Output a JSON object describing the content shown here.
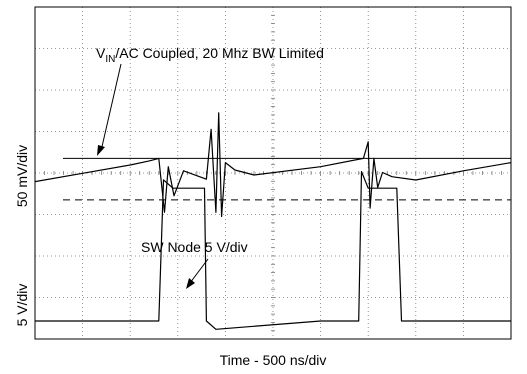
{
  "chart_data": {
    "type": "line",
    "title": "",
    "xlabel": "Time - 500 ns/div",
    "ylabel_upper": "50 mV/div",
    "ylabel_lower": "5 V/div",
    "grid": true,
    "grid_style": "dotted",
    "divisions": {
      "horizontal": 10,
      "vertical": 8
    },
    "x_unit": "ns",
    "x_per_div": 500,
    "xlim": [
      0,
      5000
    ],
    "annotations": {
      "vin": {
        "prefix": "V",
        "subscript": "IN",
        "suffix": "/AC Coupled, 20 Mhz BW Limited"
      },
      "sw": {
        "text": "SW Node 5 V/div"
      }
    },
    "series": [
      {
        "channel": "vin",
        "unit": "mV",
        "note": "",
        "x": [
          0,
          500,
          1000,
          1200,
          1300,
          1360,
          1400,
          1460,
          1560,
          1800,
          1850,
          1900,
          1930,
          1960,
          2000,
          2100,
          2300,
          3000,
          3450,
          3500,
          3520,
          3560,
          3600,
          3650,
          3750,
          4000,
          4500,
          5000
        ],
        "y": [
          -8,
          2,
          12,
          17,
          20,
          -45,
          10,
          -25,
          5,
          -5,
          55,
          -45,
          75,
          -50,
          15,
          6,
          0,
          10,
          20,
          40,
          -40,
          20,
          -15,
          3,
          -2,
          -6,
          5,
          15
        ]
      },
      {
        "channel": "sw",
        "unit": "V",
        "x": [
          0,
          1300,
          1350,
          1450,
          1700,
          1780,
          1800,
          1900,
          3000,
          3400,
          3430,
          3500,
          3800,
          3850,
          3950,
          5000
        ],
        "y": [
          0,
          0,
          17,
          16,
          16,
          16,
          0,
          -1,
          0,
          0,
          18,
          16,
          16,
          0,
          0,
          0
        ]
      }
    ],
    "reference_lines": [
      {
        "name": "vin-peak-level",
        "value_mV": 20,
        "style": "solid"
      },
      {
        "name": "vin-trough-level",
        "value_mV": -30,
        "style": "dashed"
      }
    ]
  }
}
